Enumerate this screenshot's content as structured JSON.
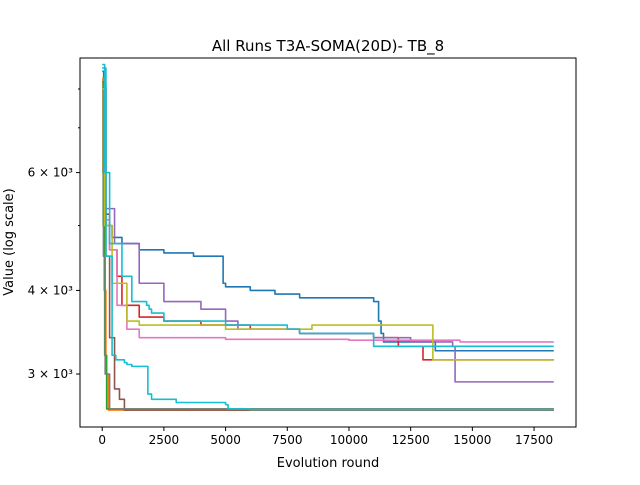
{
  "chart_data": {
    "type": "line",
    "title": "All Runs T3A-SOMA(20D)- TB_8",
    "xlabel": "Evolution round",
    "ylabel": "Value (log scale)",
    "yscale": "log",
    "xlim": [
      -900,
      19200
    ],
    "ylim": [
      2500,
      8900
    ],
    "grid": false,
    "legend": "none",
    "x_ticks": [
      0,
      2500,
      5000,
      7500,
      10000,
      12500,
      15000,
      17500
    ],
    "x_tick_labels": [
      "0",
      "2500",
      "5000",
      "7500",
      "10000",
      "12500",
      "15000",
      "17500"
    ],
    "y_ticks": [
      3000,
      4000,
      6000
    ],
    "y_tick_labels": [
      "3 × 10³",
      "4 × 10³",
      "6 × 10³"
    ],
    "y_minor_ticks": [
      5000,
      7000,
      8000
    ],
    "series": [
      {
        "color": "#1f77b4",
        "x": [
          0,
          60,
          150,
          400,
          800,
          1500,
          2500,
          3700,
          4900,
          5000,
          6000,
          7000,
          8000,
          9500,
          11000,
          11200,
          11300,
          11400,
          12500,
          13500,
          15000,
          18300
        ],
        "y": [
          8500,
          5400,
          5000,
          4800,
          4700,
          4600,
          4550,
          4500,
          4100,
          4050,
          4000,
          3950,
          3900,
          3900,
          3850,
          3600,
          3450,
          3350,
          3350,
          3250,
          3250,
          3250
        ]
      },
      {
        "color": "#ff7f0e",
        "x": [
          0,
          30,
          80,
          150,
          250,
          18300
        ],
        "y": [
          8300,
          6000,
          4000,
          3000,
          2650,
          2650
        ]
      },
      {
        "color": "#2ca02c",
        "x": [
          0,
          40,
          100,
          180,
          18300
        ],
        "y": [
          8200,
          5000,
          3200,
          2660,
          2660
        ]
      },
      {
        "color": "#d62728",
        "x": [
          0,
          100,
          300,
          600,
          800,
          1500,
          2500,
          4000,
          6000,
          8000,
          11000,
          12000,
          13000,
          18300
        ],
        "y": [
          8000,
          5200,
          4600,
          4200,
          3800,
          3650,
          3600,
          3550,
          3500,
          3450,
          3400,
          3300,
          3150,
          3150
        ]
      },
      {
        "color": "#9467bd",
        "x": [
          0,
          150,
          500,
          1500,
          2500,
          4000,
          5000,
          5500,
          8000,
          11000,
          12500,
          14200,
          14300,
          18300
        ],
        "y": [
          8100,
          5300,
          4700,
          4100,
          3850,
          3750,
          3600,
          3500,
          3450,
          3400,
          3350,
          3300,
          2920,
          2920
        ]
      },
      {
        "color": "#8c564b",
        "x": [
          0,
          150,
          300,
          500,
          700,
          900,
          18300
        ],
        "y": [
          8000,
          4500,
          3400,
          2850,
          2750,
          2650,
          2650
        ]
      },
      {
        "color": "#e377c2",
        "x": [
          0,
          100,
          300,
          600,
          1000,
          1500,
          5000,
          10000,
          14500,
          18300
        ],
        "y": [
          8000,
          5100,
          4600,
          3800,
          3500,
          3400,
          3380,
          3370,
          3350,
          3350
        ]
      },
      {
        "color": "#7f7f7f",
        "x": [
          0,
          50,
          120,
          300,
          18300
        ],
        "y": [
          8000,
          4500,
          3000,
          2660,
          2660
        ]
      },
      {
        "color": "#bcbd22",
        "x": [
          0,
          100,
          400,
          1000,
          1500,
          5000,
          8500,
          13300,
          13400,
          18300
        ],
        "y": [
          8000,
          5000,
          4100,
          3600,
          3550,
          3500,
          3550,
          3550,
          3150,
          3150
        ]
      },
      {
        "color": "#17becf",
        "x": [
          0,
          100,
          300,
          800,
          1200,
          1800,
          1900,
          2000,
          2500,
          5000,
          7500,
          8000,
          11000,
          12000,
          18300
        ],
        "y": [
          8700,
          6000,
          4700,
          4200,
          3850,
          3800,
          3750,
          3700,
          3600,
          3550,
          3500,
          3450,
          3300,
          3300,
          3300
        ]
      },
      {
        "color": "#17becf",
        "x": [
          0,
          150,
          400,
          550,
          900,
          1000,
          1200,
          1800,
          1850,
          2000,
          3000,
          5000,
          5100,
          6000,
          18300
        ],
        "y": [
          8600,
          4500,
          3200,
          3150,
          3120,
          3100,
          3080,
          3080,
          2800,
          2750,
          2720,
          2700,
          2660,
          2655,
          2655
        ]
      }
    ]
  }
}
